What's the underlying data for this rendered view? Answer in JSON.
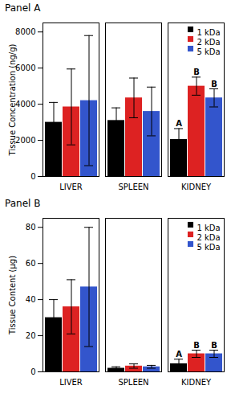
{
  "chart_data": [
    {
      "type": "bar",
      "title": "Panel A",
      "ylabel": "Tissue Concentration (ng/g)",
      "categories": [
        "LIVER",
        "SPLEEN",
        "KIDNEY"
      ],
      "series": [
        {
          "name": "1 kDa",
          "color": "#000000",
          "values": [
            3000,
            3100,
            2050
          ],
          "errors": [
            1100,
            700,
            600
          ]
        },
        {
          "name": "2 kDa",
          "color": "#dd2222",
          "values": [
            3850,
            4350,
            5000
          ],
          "errors": [
            2100,
            1100,
            500
          ]
        },
        {
          "name": "5 kDa",
          "color": "#3355cc",
          "values": [
            4200,
            3600,
            4350
          ],
          "errors": [
            3600,
            1350,
            500
          ]
        }
      ],
      "annotations": [
        {
          "category": "KIDNEY",
          "series": "1 kDa",
          "text": "A"
        },
        {
          "category": "KIDNEY",
          "series": "2 kDa",
          "text": "B"
        },
        {
          "category": "KIDNEY",
          "series": "5 kDa",
          "text": "B"
        }
      ],
      "ylim": [
        0,
        8500
      ],
      "yticks": [
        0,
        2000,
        4000,
        6000,
        8000
      ],
      "grid": false,
      "legend": "upper right"
    },
    {
      "type": "bar",
      "title": "Panel B",
      "ylabel": "Tissue Content (μg)",
      "categories": [
        "LIVER",
        "SPLEEN",
        "KIDNEY"
      ],
      "series": [
        {
          "name": "1 kDa",
          "color": "#000000",
          "values": [
            30,
            2,
            4.5
          ],
          "errors": [
            10,
            0.8,
            2.5
          ]
        },
        {
          "name": "2 kDa",
          "color": "#dd2222",
          "values": [
            36,
            3.2,
            10
          ],
          "errors": [
            15,
            1.2,
            2
          ]
        },
        {
          "name": "5 kDa",
          "color": "#3355cc",
          "values": [
            47,
            2.8,
            10
          ],
          "errors": [
            33,
            0.8,
            2
          ]
        }
      ],
      "annotations": [
        {
          "category": "KIDNEY",
          "series": "1 kDa",
          "text": "A"
        },
        {
          "category": "KIDNEY",
          "series": "2 kDa",
          "text": "B"
        },
        {
          "category": "KIDNEY",
          "series": "5 kDa",
          "text": "B"
        }
      ],
      "ylim": [
        0,
        85
      ],
      "yticks": [
        0,
        20,
        40,
        60,
        80
      ],
      "grid": false,
      "legend": "upper right"
    }
  ]
}
